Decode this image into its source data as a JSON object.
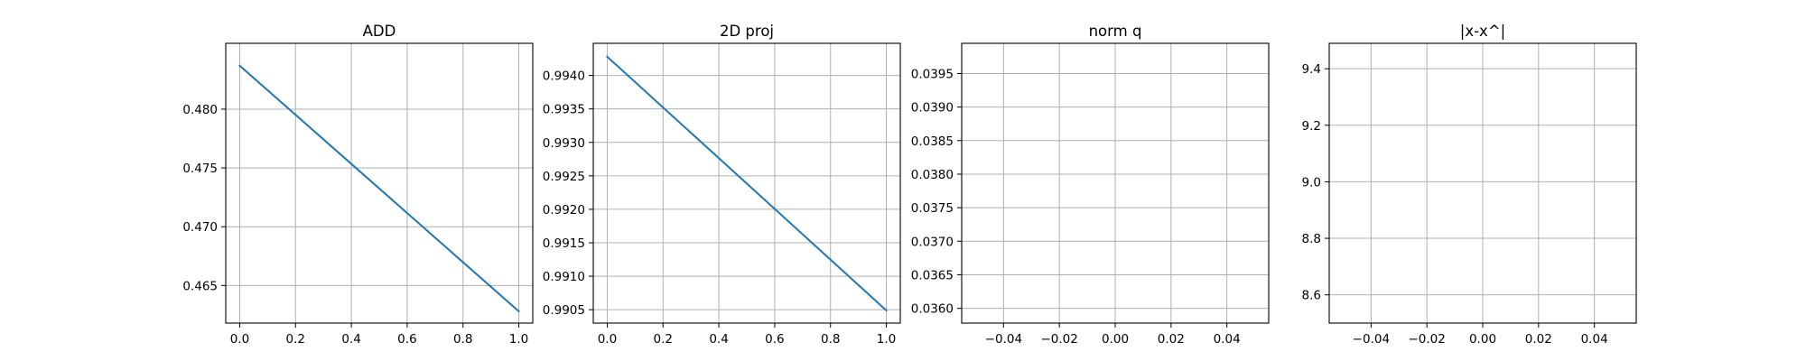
{
  "figure": {
    "background": "#ffffff",
    "grid": true
  },
  "chart_data": [
    {
      "type": "line",
      "title": "ADD",
      "xlabel": "",
      "ylabel": "",
      "xlim": [
        -0.05,
        1.05
      ],
      "ylim": [
        0.4618,
        0.4856
      ],
      "xticks": [
        "0.0",
        "0.2",
        "0.4",
        "0.6",
        "0.8",
        "1.0"
      ],
      "xtick_values": [
        0.0,
        0.2,
        0.4,
        0.6,
        0.8,
        1.0
      ],
      "yticks": [
        "0.465",
        "0.470",
        "0.475",
        "0.480"
      ],
      "ytick_values": [
        0.465,
        0.47,
        0.475,
        0.48
      ],
      "series": [
        {
          "color": "#1f77b4",
          "x": [
            0.0,
            1.0
          ],
          "y": [
            0.4837,
            0.4628
          ]
        }
      ]
    },
    {
      "type": "line",
      "title": "2D proj",
      "xlabel": "",
      "ylabel": "",
      "xlim": [
        -0.05,
        1.05
      ],
      "ylim": [
        0.9903,
        0.99448
      ],
      "xticks": [
        "0.0",
        "0.2",
        "0.4",
        "0.6",
        "0.8",
        "1.0"
      ],
      "xtick_values": [
        0.0,
        0.2,
        0.4,
        0.6,
        0.8,
        1.0
      ],
      "yticks": [
        "0.9905",
        "0.9910",
        "0.9915",
        "0.9920",
        "0.9925",
        "0.9930",
        "0.9935",
        "0.9940"
      ],
      "ytick_values": [
        0.9905,
        0.991,
        0.9915,
        0.992,
        0.9925,
        0.993,
        0.9935,
        0.994
      ],
      "series": [
        {
          "color": "#1f77b4",
          "x": [
            0.0,
            1.0
          ],
          "y": [
            0.99428,
            0.99049
          ]
        }
      ]
    },
    {
      "type": "line",
      "title": "norm q",
      "xlabel": "",
      "ylabel": "",
      "xlim": [
        -0.055,
        0.055
      ],
      "ylim": [
        0.03578,
        0.03995
      ],
      "xticks": [
        "−0.04",
        "−0.02",
        "0.00",
        "0.02",
        "0.04"
      ],
      "xtick_values": [
        -0.04,
        -0.02,
        0.0,
        0.02,
        0.04
      ],
      "yticks": [
        "0.0360",
        "0.0365",
        "0.0370",
        "0.0375",
        "0.0380",
        "0.0385",
        "0.0390",
        "0.0395"
      ],
      "ytick_values": [
        0.036,
        0.0365,
        0.037,
        0.0375,
        0.038,
        0.0385,
        0.039,
        0.0395
      ],
      "series": []
    },
    {
      "type": "line",
      "title": "|x-x^|",
      "xlabel": "",
      "ylabel": "",
      "xlim": [
        -0.055,
        0.055
      ],
      "ylim": [
        8.5,
        9.49
      ],
      "xticks": [
        "−0.04",
        "−0.02",
        "0.00",
        "0.02",
        "0.04"
      ],
      "xtick_values": [
        -0.04,
        -0.02,
        0.0,
        0.02,
        0.04
      ],
      "yticks": [
        "8.6",
        "8.8",
        "9.0",
        "9.2",
        "9.4"
      ],
      "ytick_values": [
        8.6,
        8.8,
        9.0,
        9.2,
        9.4
      ],
      "series": []
    }
  ]
}
